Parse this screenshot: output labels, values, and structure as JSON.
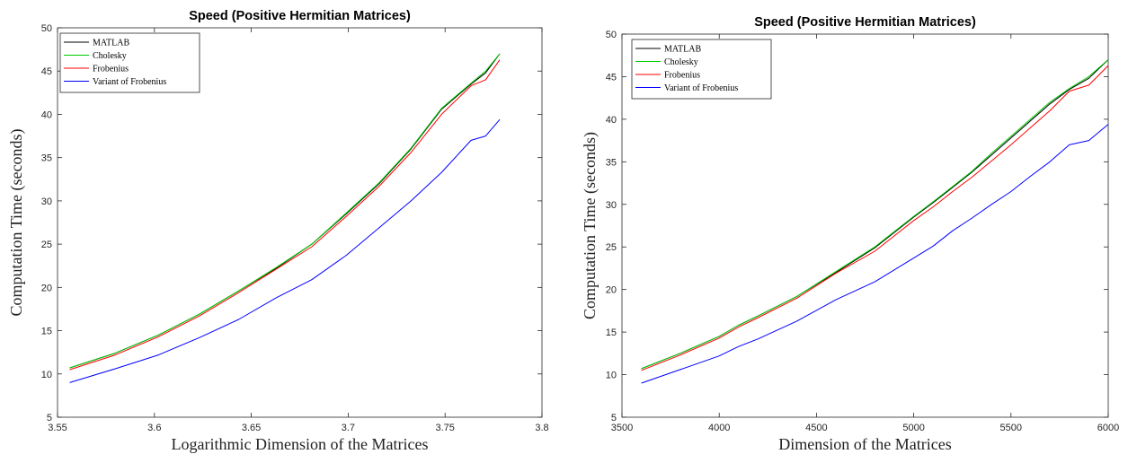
{
  "chart_data": [
    {
      "type": "line",
      "title": "Speed (Positive Hermitian Matrices)",
      "xlabel": "Logarithmic Dimension of the Matrices",
      "ylabel": "Computation Time (seconds)",
      "xlim": [
        3.55,
        3.8
      ],
      "ylim": [
        5,
        50
      ],
      "xticks": [
        3.55,
        3.6,
        3.65,
        3.7,
        3.75,
        3.8
      ],
      "xtick_labels": [
        "3.55",
        "3.6",
        "3.65",
        "3.7",
        "3.75",
        "3.8"
      ],
      "yticks": [
        5,
        10,
        15,
        20,
        25,
        30,
        35,
        40,
        45,
        50
      ],
      "ytick_labels": [
        "5",
        "10",
        "15",
        "20",
        "25",
        "30",
        "35",
        "40",
        "45",
        "50"
      ],
      "legend_position": "top-left",
      "grid": false,
      "x": [
        3.5563,
        3.5798,
        3.6021,
        3.6232,
        3.6435,
        3.6628,
        3.6812,
        3.699,
        3.716,
        3.7324,
        3.7482,
        3.7634,
        3.7709,
        3.7782
      ],
      "series": [
        {
          "name": "MATLAB",
          "color": "#000000",
          "values": [
            10.7,
            12.4,
            14.5,
            16.9,
            19.6,
            22.2,
            25.0,
            28.5,
            32.0,
            36.0,
            40.6,
            43.5,
            44.8,
            47.0
          ]
        },
        {
          "name": "Cholesky",
          "color": "#00cc00",
          "values": [
            10.7,
            12.4,
            14.5,
            16.9,
            19.6,
            22.3,
            25.0,
            28.6,
            32.1,
            36.1,
            40.7,
            43.6,
            45.0,
            47.0
          ]
        },
        {
          "name": "Frobenius",
          "color": "#ff0000",
          "values": [
            10.5,
            12.2,
            14.3,
            16.7,
            19.4,
            22.1,
            24.7,
            28.2,
            31.7,
            35.6,
            40.0,
            43.3,
            44.0,
            46.3
          ]
        },
        {
          "name": "Variant of Frobenius",
          "color": "#0000ff",
          "values": [
            9.0,
            10.6,
            12.2,
            14.2,
            16.3,
            18.8,
            20.9,
            23.7,
            26.9,
            30.0,
            33.3,
            37.0,
            37.5,
            39.4
          ]
        }
      ]
    },
    {
      "type": "line",
      "title": "Speed (Positive Hermitian Matrices)",
      "xlabel": "Dimension of the Matrices",
      "ylabel": "Computation Time (seconds)",
      "xlim": [
        3500,
        6000
      ],
      "ylim": [
        5,
        50
      ],
      "xticks": [
        3500,
        4000,
        4500,
        5000,
        5500,
        6000
      ],
      "xtick_labels": [
        "3500",
        "4000",
        "4500",
        "5000",
        "5500",
        "6000"
      ],
      "yticks": [
        5,
        10,
        15,
        20,
        25,
        30,
        35,
        40,
        45,
        50
      ],
      "ytick_labels": [
        "5",
        "10",
        "15",
        "20",
        "25",
        "30",
        "35",
        "40",
        "45",
        "50"
      ],
      "legend_position": "top-left",
      "grid": false,
      "x": [
        3600,
        3800,
        4000,
        4100,
        4200,
        4400,
        4600,
        4800,
        5000,
        5100,
        5200,
        5300,
        5400,
        5500,
        5600,
        5700,
        5800,
        5900,
        6000
      ],
      "series": [
        {
          "name": "MATLAB",
          "color": "#000000",
          "values": [
            10.7,
            12.5,
            14.5,
            15.8,
            16.9,
            19.2,
            22.0,
            24.9,
            28.5,
            30.2,
            32.0,
            33.8,
            35.8,
            37.8,
            39.8,
            41.8,
            43.5,
            44.8,
            47.0
          ]
        },
        {
          "name": "Cholesky",
          "color": "#00cc00",
          "values": [
            10.7,
            12.5,
            14.5,
            15.8,
            16.9,
            19.2,
            22.1,
            25.0,
            28.6,
            30.3,
            32.1,
            33.9,
            36.0,
            38.0,
            40.0,
            42.0,
            43.6,
            45.0,
            47.0
          ]
        },
        {
          "name": "Frobenius",
          "color": "#ff0000",
          "values": [
            10.5,
            12.3,
            14.3,
            15.6,
            16.7,
            19.0,
            21.9,
            24.5,
            28.1,
            29.7,
            31.5,
            33.2,
            35.1,
            37.0,
            39.0,
            41.0,
            43.3,
            44.0,
            46.3
          ]
        },
        {
          "name": "Variant of Frobenius",
          "color": "#0000ff",
          "values": [
            9.0,
            10.6,
            12.2,
            13.3,
            14.2,
            16.3,
            18.8,
            20.9,
            23.7,
            25.1,
            26.9,
            28.4,
            30.0,
            31.5,
            33.3,
            35.0,
            37.0,
            37.5,
            39.4
          ]
        }
      ]
    }
  ]
}
